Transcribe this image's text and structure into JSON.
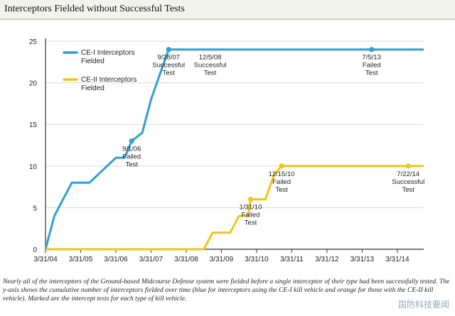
{
  "title": "Interceptors Fielded without Successful Tests",
  "caption": "Nearly all of the interceptors of the Ground-based Midcourse Defense system were fielded before a single interceptor of their type had been successfully tested. The y-axis shows the cumulative number of interceptors fielded over time (blue for interceptors using the CE-I kill vehicle and orange for those with the CE-II kill vehicle). Marked are the intercept tests for each type of kill vehicle.",
  "watermark": "国防科技要闻",
  "chart_data": {
    "type": "line",
    "title": "Interceptors Fielded without Successful Tests",
    "xlabel": "",
    "ylabel": "",
    "ylim": [
      0,
      25
    ],
    "xlim": [
      2004.0,
      2014.75
    ],
    "yticks": [
      "0",
      "5",
      "10",
      "15",
      "20",
      "25"
    ],
    "xticks": [
      {
        "x": 2004.0,
        "label": "3/31/04"
      },
      {
        "x": 2005.0,
        "label": "3/31/05"
      },
      {
        "x": 2006.0,
        "label": "3/31/06"
      },
      {
        "x": 2007.0,
        "label": "3/31/07"
      },
      {
        "x": 2008.0,
        "label": "3/31/08"
      },
      {
        "x": 2009.0,
        "label": "3/31/09"
      },
      {
        "x": 2010.0,
        "label": "3/31/10"
      },
      {
        "x": 2011.0,
        "label": "3/31/11"
      },
      {
        "x": 2012.0,
        "label": "3/31/12"
      },
      {
        "x": 2013.0,
        "label": "3/31/13"
      },
      {
        "x": 2014.0,
        "label": "3/31/14"
      }
    ],
    "grid": true,
    "series": [
      {
        "name": "CE-I Interceptors Fielded",
        "color": "#2f9fd3",
        "points": [
          [
            2004.0,
            0
          ],
          [
            2004.25,
            4
          ],
          [
            2004.75,
            8
          ],
          [
            2005.25,
            8
          ],
          [
            2005.75,
            10
          ],
          [
            2006.0,
            11
          ],
          [
            2006.25,
            11
          ],
          [
            2006.45,
            13
          ],
          [
            2006.75,
            14
          ],
          [
            2007.0,
            18
          ],
          [
            2007.25,
            21
          ],
          [
            2007.5,
            24
          ],
          [
            2014.75,
            24
          ]
        ],
        "markers": [
          {
            "x": 2006.45,
            "y": 13,
            "label": [
              "9/1/06",
              "Failed",
              "Test"
            ]
          },
          {
            "x": 2007.5,
            "y": 24,
            "label": [
              "9/28/07",
              "Successful",
              "Test"
            ]
          },
          {
            "x": 2013.27,
            "y": 24,
            "label": [
              "7/5/13",
              "Failed",
              "Test"
            ]
          }
        ],
        "annotations": [
          {
            "x": 2008.68,
            "y": 24,
            "label": [
              "12/5/08",
              "Successful",
              "Test"
            ]
          }
        ]
      },
      {
        "name": "CE-II Interceptors Fielded",
        "color": "#f2c417",
        "points": [
          [
            2004.0,
            0
          ],
          [
            2008.5,
            0
          ],
          [
            2008.75,
            2
          ],
          [
            2009.25,
            2
          ],
          [
            2009.5,
            4
          ],
          [
            2009.75,
            4
          ],
          [
            2009.83,
            6
          ],
          [
            2010.25,
            6
          ],
          [
            2010.5,
            9
          ],
          [
            2010.71,
            10
          ],
          [
            2014.75,
            10
          ]
        ],
        "markers": [
          {
            "x": 2009.83,
            "y": 6,
            "label": [
              "1/31/10",
              "Failed",
              "Test"
            ]
          },
          {
            "x": 2010.71,
            "y": 10,
            "label": [
              "12/15/10",
              "Failed",
              "Test"
            ]
          },
          {
            "x": 2014.31,
            "y": 10,
            "label": [
              "7/22/14",
              "Successful",
              "Test"
            ]
          }
        ],
        "annotations": []
      }
    ]
  }
}
